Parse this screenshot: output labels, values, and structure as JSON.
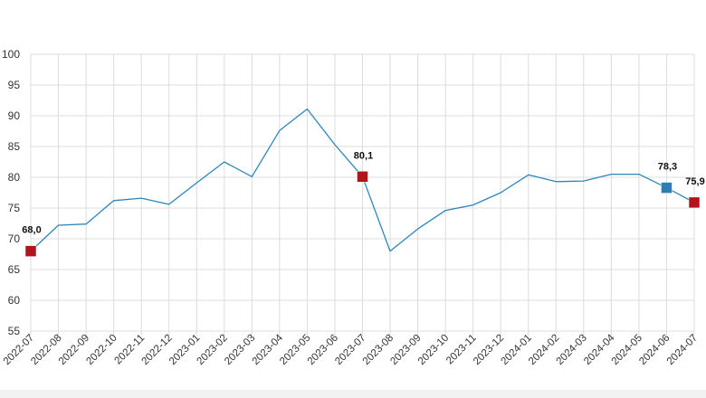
{
  "chart_data": {
    "type": "line",
    "title": "",
    "xlabel": "",
    "ylabel": "",
    "ylim": [
      55,
      100
    ],
    "yticks": [
      55,
      60,
      65,
      70,
      75,
      80,
      85,
      90,
      95,
      100
    ],
    "grid": true,
    "legend": "none",
    "categories": [
      "2022-07",
      "2022-08",
      "2022-09",
      "2022-10",
      "2022-11",
      "2022-12",
      "2023-01",
      "2023-02",
      "2023-03",
      "2023-04",
      "2023-05",
      "2023-06",
      "2023-07",
      "2023-08",
      "2023-09",
      "2023-10",
      "2023-11",
      "2023-12",
      "2024-01",
      "2024-02",
      "2024-03",
      "2024-04",
      "2024-05",
      "2024-06",
      "2024-07"
    ],
    "series": [
      {
        "color": "#2e86b8",
        "values": [
          68.0,
          72.2,
          72.4,
          76.2,
          76.6,
          75.6,
          79.1,
          82.5,
          80.1,
          87.6,
          91.1,
          85.3,
          80.1,
          68.0,
          71.6,
          74.6,
          75.5,
          77.5,
          80.4,
          79.3,
          79.4,
          80.5,
          80.5,
          78.3,
          75.9
        ]
      }
    ],
    "markers": [
      {
        "index": 0,
        "label": "68,0",
        "color": "#b0141c"
      },
      {
        "index": 12,
        "label": "80,1",
        "color": "#b0141c"
      },
      {
        "index": 23,
        "label": "78,3",
        "color": "#2e7db5"
      },
      {
        "index": 24,
        "label": "75,9",
        "color": "#b0141c"
      }
    ]
  }
}
